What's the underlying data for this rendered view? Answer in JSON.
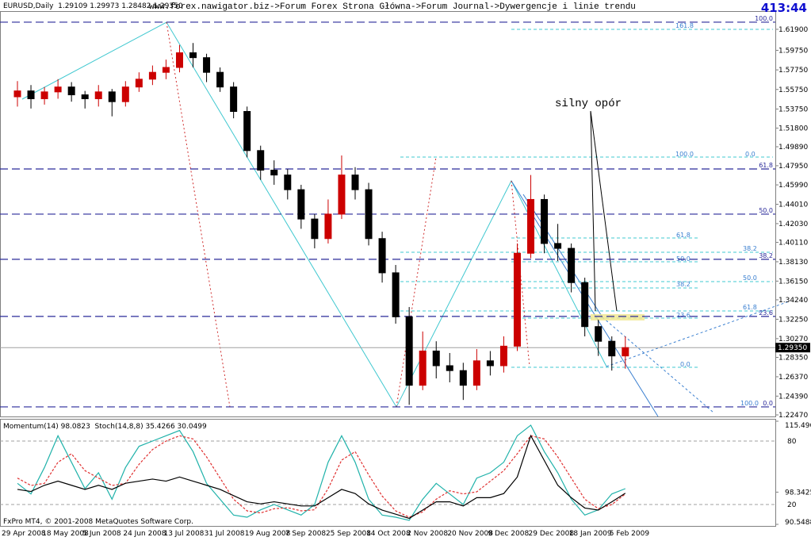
{
  "chart_data": [
    {
      "type": "candlestick",
      "title": "www.forex.nawigator.biz->Forum Forex Strona Główna->Forum Journal->Dywergencje i linie trendu",
      "subtitle": "EURUSD,Daily  1.29109 1.29973 1.28482 1.29350",
      "categories": [
        "29 Apr 2008",
        null,
        null,
        "18 May 2008",
        null,
        null,
        "5 Jun 2008",
        null,
        null,
        "24 Jun 2008",
        null,
        null,
        "13 Jul 2008",
        null,
        null,
        "31 Jul 2008",
        null,
        null,
        "19 Aug 2008",
        null,
        null,
        "7 Sep 2008",
        null,
        null,
        "25 Sep 2008",
        null,
        null,
        "14 Oct 2008",
        null,
        null,
        "2 Nov 2008",
        null,
        null,
        "20 Nov 2008",
        null,
        null,
        "9 Dec 2008",
        null,
        null,
        "29 Dec 2008",
        null,
        null,
        "18 Jan 2009",
        null,
        null,
        "5 Feb 2009"
      ],
      "open": [
        1.55,
        1.556,
        1.548,
        1.555,
        1.56,
        1.552,
        1.548,
        1.555,
        1.545,
        1.56,
        1.568,
        1.575,
        1.58,
        1.595,
        1.59,
        1.575,
        1.56,
        1.535,
        1.495,
        1.475,
        1.47,
        1.455,
        1.425,
        1.405,
        1.43,
        1.47,
        1.455,
        1.405,
        1.37,
        1.325,
        1.255,
        1.29,
        1.275,
        1.27,
        1.255,
        1.28,
        1.275,
        1.295,
        1.39,
        1.445,
        1.4,
        1.395,
        1.36,
        1.315,
        1.3,
        1.285
      ],
      "high": [
        1.566,
        1.562,
        1.56,
        1.568,
        1.565,
        1.556,
        1.562,
        1.558,
        1.566,
        1.575,
        1.582,
        1.588,
        1.603,
        1.605,
        1.594,
        1.58,
        1.565,
        1.54,
        1.5,
        1.485,
        1.476,
        1.46,
        1.43,
        1.445,
        1.49,
        1.478,
        1.462,
        1.412,
        1.378,
        1.335,
        1.31,
        1.3,
        1.288,
        1.278,
        1.292,
        1.29,
        1.305,
        1.4,
        1.47,
        1.45,
        1.42,
        1.4,
        1.365,
        1.322,
        1.305,
        1.305
      ],
      "low": [
        1.54,
        1.538,
        1.542,
        1.548,
        1.545,
        1.538,
        1.54,
        1.53,
        1.54,
        1.555,
        1.562,
        1.568,
        1.575,
        1.58,
        1.565,
        1.555,
        1.528,
        1.488,
        1.465,
        1.46,
        1.445,
        1.415,
        1.395,
        1.4,
        1.425,
        1.445,
        1.398,
        1.36,
        1.318,
        1.235,
        1.25,
        1.262,
        1.258,
        1.24,
        1.25,
        1.265,
        1.268,
        1.29,
        1.385,
        1.39,
        1.382,
        1.35,
        1.305,
        1.285,
        1.27,
        1.272
      ],
      "close": [
        1.556,
        1.548,
        1.555,
        1.56,
        1.552,
        1.548,
        1.555,
        1.545,
        1.56,
        1.568,
        1.575,
        1.58,
        1.595,
        1.59,
        1.575,
        1.56,
        1.535,
        1.495,
        1.475,
        1.47,
        1.455,
        1.425,
        1.405,
        1.43,
        1.47,
        1.455,
        1.405,
        1.37,
        1.325,
        1.255,
        1.29,
        1.275,
        1.27,
        1.255,
        1.28,
        1.275,
        1.295,
        1.39,
        1.445,
        1.4,
        1.395,
        1.36,
        1.315,
        1.3,
        1.285,
        1.2935
      ],
      "up_color": "#cc0000",
      "down_color": "#000000",
      "ylim": [
        1.2231,
        1.6368
      ],
      "yticks": [
        {
          "value": 1.619,
          "label": "1.61900"
        },
        {
          "value": 1.5975,
          "label": "1.59750"
        },
        {
          "value": 1.5775,
          "label": "1.57750"
        },
        {
          "value": 1.5575,
          "label": "1.55750"
        },
        {
          "value": 1.5375,
          "label": "1.53750"
        },
        {
          "value": 1.518,
          "label": "1.51800"
        },
        {
          "value": 1.4989,
          "label": "1.49890"
        },
        {
          "value": 1.4795,
          "label": "1.47950"
        },
        {
          "value": 1.4599,
          "label": "1.45990"
        },
        {
          "value": 1.4401,
          "label": "1.44010"
        },
        {
          "value": 1.4203,
          "label": "1.42030"
        },
        {
          "value": 1.4011,
          "label": "1.40110"
        },
        {
          "value": 1.3813,
          "label": "1.38130"
        },
        {
          "value": 1.3615,
          "label": "1.36150"
        },
        {
          "value": 1.3424,
          "label": "1.34240"
        },
        {
          "value": 1.3225,
          "label": "1.32250"
        },
        {
          "value": 1.3027,
          "label": "1.30270"
        },
        {
          "value": 1.2835,
          "label": "1.28350"
        },
        {
          "value": 1.2637,
          "label": "1.26370"
        },
        {
          "value": 1.2439,
          "label": "1.24390"
        },
        {
          "value": 1.2247,
          "label": "1.22470"
        }
      ],
      "last_price": {
        "value": 1.2935,
        "label": "1.29350"
      },
      "hlines": [
        {
          "value": 1.6263,
          "label": "100.0"
        },
        {
          "value": 1.4762,
          "label": "61.8"
        },
        {
          "value": 1.43,
          "label": "50.0"
        },
        {
          "value": 1.3838,
          "label": "38.2"
        },
        {
          "value": 1.3254,
          "label": "23.6"
        },
        {
          "value": 1.2329,
          "label": "0.0"
        }
      ],
      "annotations": [
        "silny opór",
        "161.8",
        "100.0",
        "0.0",
        "61.8",
        "38.2",
        "50.0",
        "50.0",
        "38.2",
        "61.8",
        "23.6",
        "0.0",
        "100.0"
      ]
    },
    {
      "type": "line",
      "title": "Momentum(14) 98.0823  Stoch(14,8,8) 35.4266 30.0499",
      "ylim": [
        1.25,
        98.75
      ],
      "yticks": [
        20,
        80
      ],
      "y2lim": [
        90.5488,
        115.4963
      ],
      "y2ticks": [
        90.5488,
        98.3425,
        115.4963
      ],
      "grid": true,
      "series": [
        {
          "color": "#20b2aa",
          "dashed": false,
          "values": [
            40,
            30,
            55,
            85,
            60,
            35,
            50,
            25,
            55,
            75,
            80,
            85,
            90,
            70,
            40,
            25,
            10,
            8,
            15,
            20,
            15,
            10,
            20,
            60,
            85,
            60,
            25,
            10,
            8,
            5,
            25,
            40,
            30,
            20,
            45,
            50,
            60,
            85,
            95,
            70,
            50,
            25,
            10,
            15,
            30,
            35
          ]
        },
        {
          "color": "#e03030",
          "dashed": true,
          "values": [
            45,
            38,
            40,
            60,
            68,
            52,
            45,
            38,
            40,
            58,
            72,
            80,
            85,
            82,
            65,
            45,
            25,
            14,
            12,
            16,
            17,
            14,
            15,
            35,
            62,
            70,
            48,
            28,
            14,
            8,
            13,
            25,
            33,
            30,
            32,
            42,
            52,
            68,
            85,
            82,
            65,
            45,
            25,
            16,
            20,
            30
          ]
        },
        {
          "color": "#000000",
          "dashed": false,
          "axis": "y2",
          "values": [
            99,
            98.5,
            100,
            101,
            100,
            99,
            100,
            99,
            100.5,
            101,
            101.5,
            101,
            102,
            101,
            100,
            99,
            97.5,
            96,
            95.5,
            96,
            95.5,
            95,
            95,
            97,
            99,
            98,
            95.5,
            94,
            93,
            92,
            94,
            96,
            96,
            95,
            97,
            97,
            98,
            102,
            112,
            106,
            100,
            97,
            94.5,
            94,
            96,
            98.08
          ]
        }
      ]
    }
  ],
  "clock": "413:44",
  "footer": "FxPro MT4, © 2001-2008 MetaQuotes Software Corp."
}
